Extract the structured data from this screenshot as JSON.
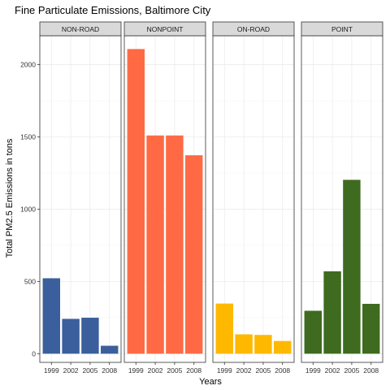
{
  "chart_data": {
    "type": "bar",
    "title": "Fine Particulate Emissions, Baltimore City",
    "xlabel": "Years",
    "ylabel": "Total PM2.5 Emissions in tons",
    "categories": [
      "1999",
      "2002",
      "2005",
      "2008"
    ],
    "yticks": [
      0,
      500,
      1000,
      1500,
      2000
    ],
    "ylim": [
      -60,
      2200
    ],
    "grid": true,
    "legend": "none",
    "panels": [
      {
        "name": "NON-ROAD",
        "color": "#3A5F9C",
        "values": [
          522,
          241,
          249,
          55
        ]
      },
      {
        "name": "NONPOINT",
        "color": "#FF6A45",
        "values": [
          2108,
          1510,
          1510,
          1373
        ]
      },
      {
        "name": "ON-ROAD",
        "color": "#FFB800",
        "values": [
          347,
          134,
          130,
          88
        ]
      },
      {
        "name": "POINT",
        "color": "#3E6B1F",
        "values": [
          297,
          570,
          1203,
          345
        ]
      }
    ]
  }
}
